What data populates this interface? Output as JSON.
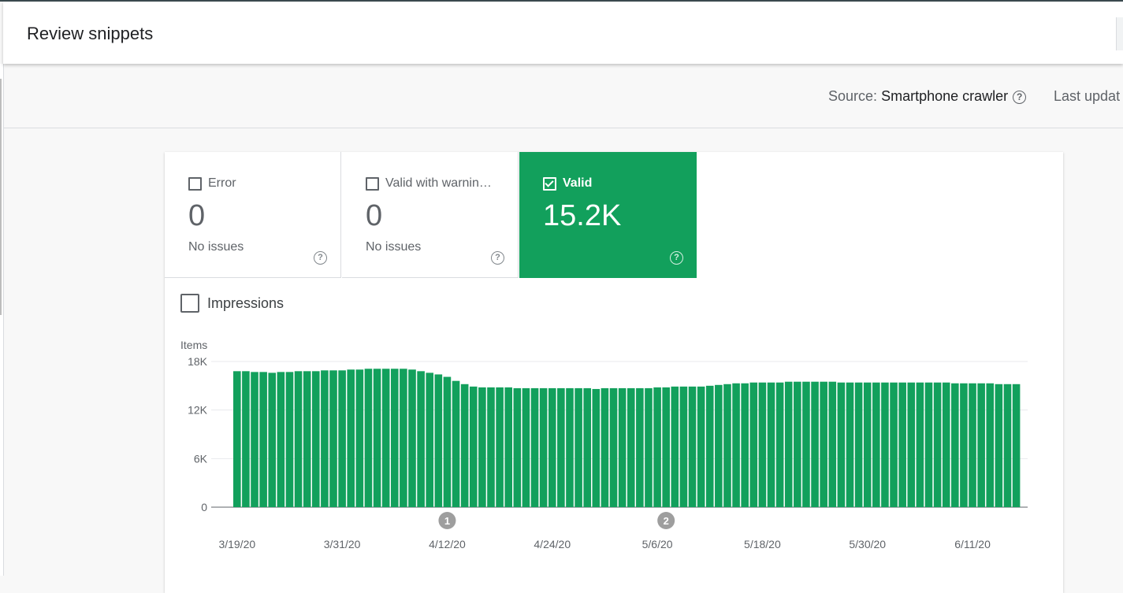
{
  "header": {
    "title": "Review snippets"
  },
  "subbar": {
    "source_label": "Source:",
    "source_value": "Smartphone crawler",
    "help_icon": "help-circle-icon",
    "last_updated_partial": "Last updat"
  },
  "tiles": [
    {
      "label": "Error",
      "value": "0",
      "sub": "No issues",
      "checked": false
    },
    {
      "label": "Valid with warnin…",
      "value": "0",
      "sub": "No issues",
      "checked": false
    },
    {
      "label": "Valid",
      "value": "15.2K",
      "sub": "",
      "checked": true
    }
  ],
  "impressions": {
    "label": "Impressions",
    "checked": false
  },
  "colors": {
    "valid_green": "#12a05c",
    "annotation_grey": "#9e9e9e"
  },
  "chart_data": {
    "type": "bar",
    "ylabel": "Items",
    "ylim": [
      0,
      18000
    ],
    "yticks": [
      "0",
      "6K",
      "12K",
      "18K"
    ],
    "xtick_labels": [
      "3/19/20",
      "3/31/20",
      "4/12/20",
      "4/24/20",
      "5/6/20",
      "5/18/20",
      "5/30/20",
      "6/11/20"
    ],
    "first_date": "3/19/20",
    "annotations": [
      {
        "label": "1",
        "date": "4/12/20"
      },
      {
        "label": "2",
        "date": "5/7/20"
      }
    ],
    "values": [
      16800,
      16800,
      16700,
      16700,
      16600,
      16700,
      16700,
      16800,
      16800,
      16800,
      16900,
      16900,
      16900,
      17000,
      17000,
      17100,
      17100,
      17100,
      17100,
      17100,
      17000,
      16800,
      16600,
      16400,
      16100,
      15600,
      15200,
      14900,
      14800,
      14800,
      14800,
      14800,
      14700,
      14700,
      14700,
      14700,
      14700,
      14700,
      14700,
      14700,
      14700,
      14600,
      14700,
      14700,
      14700,
      14700,
      14700,
      14700,
      14800,
      14800,
      14900,
      14900,
      14900,
      14900,
      15000,
      15100,
      15200,
      15300,
      15300,
      15400,
      15400,
      15400,
      15400,
      15500,
      15500,
      15500,
      15500,
      15500,
      15500,
      15400,
      15400,
      15400,
      15400,
      15400,
      15400,
      15400,
      15400,
      15400,
      15400,
      15400,
      15400,
      15400,
      15300,
      15300,
      15300,
      15300,
      15300,
      15200,
      15200,
      15200
    ]
  }
}
